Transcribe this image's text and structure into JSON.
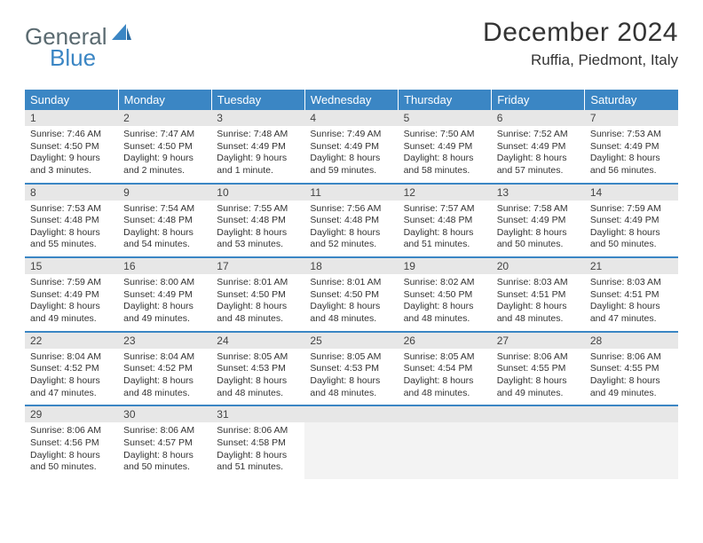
{
  "logo": {
    "text_general": "General",
    "text_blue": "Blue",
    "accent_color": "#3b86c4",
    "gray_color": "#5a6a70"
  },
  "header": {
    "month_title": "December 2024",
    "location": "Ruffia, Piedmont, Italy"
  },
  "calendar": {
    "weekday_labels": [
      "Sunday",
      "Monday",
      "Tuesday",
      "Wednesday",
      "Thursday",
      "Friday",
      "Saturday"
    ],
    "header_bg": "#3b86c4",
    "header_fg": "#ffffff",
    "daynum_bg": "#e7e7e7",
    "border_color": "#3b86c4",
    "empty_bg": "#f3f3f3",
    "days": [
      {
        "n": "1",
        "sunrise": "Sunrise: 7:46 AM",
        "sunset": "Sunset: 4:50 PM",
        "daylight": "Daylight: 9 hours and 3 minutes."
      },
      {
        "n": "2",
        "sunrise": "Sunrise: 7:47 AM",
        "sunset": "Sunset: 4:50 PM",
        "daylight": "Daylight: 9 hours and 2 minutes."
      },
      {
        "n": "3",
        "sunrise": "Sunrise: 7:48 AM",
        "sunset": "Sunset: 4:49 PM",
        "daylight": "Daylight: 9 hours and 1 minute."
      },
      {
        "n": "4",
        "sunrise": "Sunrise: 7:49 AM",
        "sunset": "Sunset: 4:49 PM",
        "daylight": "Daylight: 8 hours and 59 minutes."
      },
      {
        "n": "5",
        "sunrise": "Sunrise: 7:50 AM",
        "sunset": "Sunset: 4:49 PM",
        "daylight": "Daylight: 8 hours and 58 minutes."
      },
      {
        "n": "6",
        "sunrise": "Sunrise: 7:52 AM",
        "sunset": "Sunset: 4:49 PM",
        "daylight": "Daylight: 8 hours and 57 minutes."
      },
      {
        "n": "7",
        "sunrise": "Sunrise: 7:53 AM",
        "sunset": "Sunset: 4:49 PM",
        "daylight": "Daylight: 8 hours and 56 minutes."
      },
      {
        "n": "8",
        "sunrise": "Sunrise: 7:53 AM",
        "sunset": "Sunset: 4:48 PM",
        "daylight": "Daylight: 8 hours and 55 minutes."
      },
      {
        "n": "9",
        "sunrise": "Sunrise: 7:54 AM",
        "sunset": "Sunset: 4:48 PM",
        "daylight": "Daylight: 8 hours and 54 minutes."
      },
      {
        "n": "10",
        "sunrise": "Sunrise: 7:55 AM",
        "sunset": "Sunset: 4:48 PM",
        "daylight": "Daylight: 8 hours and 53 minutes."
      },
      {
        "n": "11",
        "sunrise": "Sunrise: 7:56 AM",
        "sunset": "Sunset: 4:48 PM",
        "daylight": "Daylight: 8 hours and 52 minutes."
      },
      {
        "n": "12",
        "sunrise": "Sunrise: 7:57 AM",
        "sunset": "Sunset: 4:48 PM",
        "daylight": "Daylight: 8 hours and 51 minutes."
      },
      {
        "n": "13",
        "sunrise": "Sunrise: 7:58 AM",
        "sunset": "Sunset: 4:49 PM",
        "daylight": "Daylight: 8 hours and 50 minutes."
      },
      {
        "n": "14",
        "sunrise": "Sunrise: 7:59 AM",
        "sunset": "Sunset: 4:49 PM",
        "daylight": "Daylight: 8 hours and 50 minutes."
      },
      {
        "n": "15",
        "sunrise": "Sunrise: 7:59 AM",
        "sunset": "Sunset: 4:49 PM",
        "daylight": "Daylight: 8 hours and 49 minutes."
      },
      {
        "n": "16",
        "sunrise": "Sunrise: 8:00 AM",
        "sunset": "Sunset: 4:49 PM",
        "daylight": "Daylight: 8 hours and 49 minutes."
      },
      {
        "n": "17",
        "sunrise": "Sunrise: 8:01 AM",
        "sunset": "Sunset: 4:50 PM",
        "daylight": "Daylight: 8 hours and 48 minutes."
      },
      {
        "n": "18",
        "sunrise": "Sunrise: 8:01 AM",
        "sunset": "Sunset: 4:50 PM",
        "daylight": "Daylight: 8 hours and 48 minutes."
      },
      {
        "n": "19",
        "sunrise": "Sunrise: 8:02 AM",
        "sunset": "Sunset: 4:50 PM",
        "daylight": "Daylight: 8 hours and 48 minutes."
      },
      {
        "n": "20",
        "sunrise": "Sunrise: 8:03 AM",
        "sunset": "Sunset: 4:51 PM",
        "daylight": "Daylight: 8 hours and 48 minutes."
      },
      {
        "n": "21",
        "sunrise": "Sunrise: 8:03 AM",
        "sunset": "Sunset: 4:51 PM",
        "daylight": "Daylight: 8 hours and 47 minutes."
      },
      {
        "n": "22",
        "sunrise": "Sunrise: 8:04 AM",
        "sunset": "Sunset: 4:52 PM",
        "daylight": "Daylight: 8 hours and 47 minutes."
      },
      {
        "n": "23",
        "sunrise": "Sunrise: 8:04 AM",
        "sunset": "Sunset: 4:52 PM",
        "daylight": "Daylight: 8 hours and 48 minutes."
      },
      {
        "n": "24",
        "sunrise": "Sunrise: 8:05 AM",
        "sunset": "Sunset: 4:53 PM",
        "daylight": "Daylight: 8 hours and 48 minutes."
      },
      {
        "n": "25",
        "sunrise": "Sunrise: 8:05 AM",
        "sunset": "Sunset: 4:53 PM",
        "daylight": "Daylight: 8 hours and 48 minutes."
      },
      {
        "n": "26",
        "sunrise": "Sunrise: 8:05 AM",
        "sunset": "Sunset: 4:54 PM",
        "daylight": "Daylight: 8 hours and 48 minutes."
      },
      {
        "n": "27",
        "sunrise": "Sunrise: 8:06 AM",
        "sunset": "Sunset: 4:55 PM",
        "daylight": "Daylight: 8 hours and 49 minutes."
      },
      {
        "n": "28",
        "sunrise": "Sunrise: 8:06 AM",
        "sunset": "Sunset: 4:55 PM",
        "daylight": "Daylight: 8 hours and 49 minutes."
      },
      {
        "n": "29",
        "sunrise": "Sunrise: 8:06 AM",
        "sunset": "Sunset: 4:56 PM",
        "daylight": "Daylight: 8 hours and 50 minutes."
      },
      {
        "n": "30",
        "sunrise": "Sunrise: 8:06 AM",
        "sunset": "Sunset: 4:57 PM",
        "daylight": "Daylight: 8 hours and 50 minutes."
      },
      {
        "n": "31",
        "sunrise": "Sunrise: 8:06 AM",
        "sunset": "Sunset: 4:58 PM",
        "daylight": "Daylight: 8 hours and 51 minutes."
      }
    ],
    "first_weekday_index": 0,
    "trailing_empty": 4
  }
}
